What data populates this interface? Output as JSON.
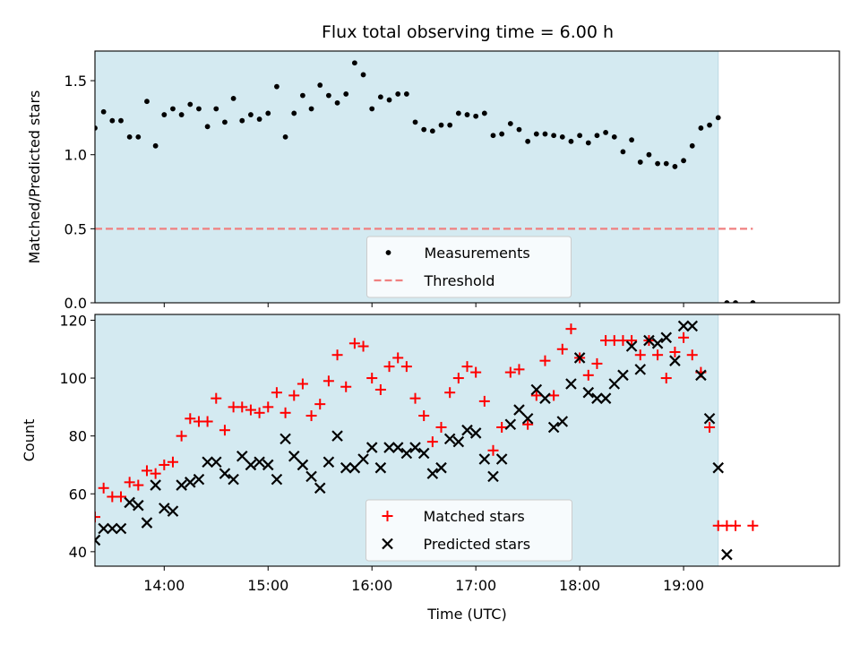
{
  "title": "Flux total observing time = 6.00 h",
  "chart_data": [
    {
      "type": "scatter",
      "ylabel": "Matched/Predicted stars",
      "xlabel": "",
      "x_unit": "UTC time (HH:MM)",
      "xlim": [
        "13:20",
        "20:30"
      ],
      "ylim": [
        0,
        1.7
      ],
      "yticks": [
        "0.0",
        "0.5",
        "1.0",
        "1.5"
      ],
      "grid": false,
      "shaded_span": [
        "13:20",
        "19:20"
      ],
      "shaded_color": "#d4eaf1",
      "legend_position": "lower center",
      "series": [
        {
          "name": "Measurements",
          "marker": "dot",
          "color": "#000000",
          "points": [
            [
              "13:20",
              1.18
            ],
            [
              "13:25",
              1.29
            ],
            [
              "13:30",
              1.23
            ],
            [
              "13:35",
              1.23
            ],
            [
              "13:40",
              1.12
            ],
            [
              "13:45",
              1.12
            ],
            [
              "13:50",
              1.36
            ],
            [
              "13:55",
              1.06
            ],
            [
              "14:00",
              1.27
            ],
            [
              "14:05",
              1.31
            ],
            [
              "14:10",
              1.27
            ],
            [
              "14:15",
              1.34
            ],
            [
              "14:20",
              1.31
            ],
            [
              "14:25",
              1.19
            ],
            [
              "14:30",
              1.31
            ],
            [
              "14:35",
              1.22
            ],
            [
              "14:40",
              1.38
            ],
            [
              "14:45",
              1.23
            ],
            [
              "14:50",
              1.27
            ],
            [
              "14:55",
              1.24
            ],
            [
              "15:00",
              1.28
            ],
            [
              "15:05",
              1.46
            ],
            [
              "15:10",
              1.12
            ],
            [
              "15:15",
              1.28
            ],
            [
              "15:20",
              1.4
            ],
            [
              "15:25",
              1.31
            ],
            [
              "15:30",
              1.47
            ],
            [
              "15:35",
              1.4
            ],
            [
              "15:40",
              1.35
            ],
            [
              "15:45",
              1.41
            ],
            [
              "15:50",
              1.62
            ],
            [
              "15:55",
              1.54
            ],
            [
              "16:00",
              1.31
            ],
            [
              "16:05",
              1.39
            ],
            [
              "16:10",
              1.37
            ],
            [
              "16:15",
              1.41
            ],
            [
              "16:20",
              1.41
            ],
            [
              "16:25",
              1.22
            ],
            [
              "16:30",
              1.17
            ],
            [
              "16:35",
              1.16
            ],
            [
              "16:40",
              1.2
            ],
            [
              "16:45",
              1.2
            ],
            [
              "16:50",
              1.28
            ],
            [
              "16:55",
              1.27
            ],
            [
              "17:00",
              1.26
            ],
            [
              "17:05",
              1.28
            ],
            [
              "17:10",
              1.13
            ],
            [
              "17:15",
              1.14
            ],
            [
              "17:20",
              1.21
            ],
            [
              "17:25",
              1.17
            ],
            [
              "17:30",
              1.09
            ],
            [
              "17:35",
              1.14
            ],
            [
              "17:40",
              1.14
            ],
            [
              "17:45",
              1.13
            ],
            [
              "17:50",
              1.12
            ],
            [
              "17:55",
              1.09
            ],
            [
              "18:00",
              1.13
            ],
            [
              "18:05",
              1.08
            ],
            [
              "18:10",
              1.13
            ],
            [
              "18:15",
              1.15
            ],
            [
              "18:20",
              1.12
            ],
            [
              "18:25",
              1.02
            ],
            [
              "18:30",
              1.1
            ],
            [
              "18:35",
              0.95
            ],
            [
              "18:40",
              1.0
            ],
            [
              "18:45",
              0.94
            ],
            [
              "18:50",
              0.94
            ],
            [
              "18:55",
              0.92
            ],
            [
              "19:00",
              0.96
            ],
            [
              "19:05",
              1.06
            ],
            [
              "19:10",
              1.18
            ],
            [
              "19:15",
              1.2
            ],
            [
              "19:20",
              1.25
            ],
            [
              "19:25",
              0.0
            ],
            [
              "19:30",
              0.0
            ],
            [
              "19:40",
              0.0
            ]
          ]
        },
        {
          "name": "Threshold",
          "marker": "dashed-line",
          "color": "#f08080",
          "points": [
            [
              "13:20",
              0.5
            ],
            [
              "19:40",
              0.5
            ]
          ]
        }
      ]
    },
    {
      "type": "scatter",
      "ylabel": "Count",
      "xlabel": "Time (UTC)",
      "xlim": [
        "13:20",
        "20:30"
      ],
      "ylim": [
        35,
        122
      ],
      "yticks": [
        "40",
        "60",
        "80",
        "100",
        "120"
      ],
      "xticks": [
        "14:00",
        "15:00",
        "16:00",
        "17:00",
        "18:00",
        "19:00"
      ],
      "grid": false,
      "shaded_span": [
        "13:20",
        "19:20"
      ],
      "shaded_color": "#d4eaf1",
      "legend_position": "lower center",
      "series": [
        {
          "name": "Matched stars",
          "marker": "plus",
          "color": "#ff0000",
          "points": [
            [
              "13:20",
              52
            ],
            [
              "13:25",
              62
            ],
            [
              "13:30",
              59
            ],
            [
              "13:35",
              59
            ],
            [
              "13:40",
              64
            ],
            [
              "13:45",
              63
            ],
            [
              "13:50",
              68
            ],
            [
              "13:55",
              67
            ],
            [
              "14:00",
              70
            ],
            [
              "14:05",
              71
            ],
            [
              "14:10",
              80
            ],
            [
              "14:15",
              86
            ],
            [
              "14:20",
              85
            ],
            [
              "14:25",
              85
            ],
            [
              "14:30",
              93
            ],
            [
              "14:35",
              82
            ],
            [
              "14:40",
              90
            ],
            [
              "14:45",
              90
            ],
            [
              "14:50",
              89
            ],
            [
              "14:55",
              88
            ],
            [
              "15:00",
              90
            ],
            [
              "15:05",
              95
            ],
            [
              "15:10",
              88
            ],
            [
              "15:15",
              94
            ],
            [
              "15:20",
              98
            ],
            [
              "15:25",
              87
            ],
            [
              "15:30",
              91
            ],
            [
              "15:35",
              99
            ],
            [
              "15:40",
              108
            ],
            [
              "15:45",
              97
            ],
            [
              "15:50",
              112
            ],
            [
              "15:55",
              111
            ],
            [
              "16:00",
              100
            ],
            [
              "16:05",
              96
            ],
            [
              "16:10",
              104
            ],
            [
              "16:15",
              107
            ],
            [
              "16:20",
              104
            ],
            [
              "16:25",
              93
            ],
            [
              "16:30",
              87
            ],
            [
              "16:35",
              78
            ],
            [
              "16:40",
              83
            ],
            [
              "16:45",
              95
            ],
            [
              "16:50",
              100
            ],
            [
              "16:55",
              104
            ],
            [
              "17:00",
              102
            ],
            [
              "17:05",
              92
            ],
            [
              "17:10",
              75
            ],
            [
              "17:15",
              83
            ],
            [
              "17:20",
              102
            ],
            [
              "17:25",
              103
            ],
            [
              "17:30",
              84
            ],
            [
              "17:35",
              94
            ],
            [
              "17:40",
              106
            ],
            [
              "17:45",
              94
            ],
            [
              "17:50",
              110
            ],
            [
              "17:55",
              117
            ],
            [
              "18:00",
              107
            ],
            [
              "18:05",
              101
            ],
            [
              "18:10",
              105
            ],
            [
              "18:15",
              113
            ],
            [
              "18:20",
              113
            ],
            [
              "18:25",
              113
            ],
            [
              "18:30",
              113
            ],
            [
              "18:35",
              108
            ],
            [
              "18:40",
              113
            ],
            [
              "18:45",
              108
            ],
            [
              "18:50",
              100
            ],
            [
              "18:55",
              109
            ],
            [
              "19:00",
              114
            ],
            [
              "19:05",
              108
            ],
            [
              "19:10",
              102
            ],
            [
              "19:15",
              83
            ],
            [
              "19:20",
              49
            ],
            [
              "19:25",
              49
            ],
            [
              "19:30",
              49
            ],
            [
              "19:40",
              49
            ]
          ]
        },
        {
          "name": "Predicted stars",
          "marker": "x",
          "color": "#000000",
          "points": [
            [
              "13:20",
              44
            ],
            [
              "13:25",
              48
            ],
            [
              "13:30",
              48
            ],
            [
              "13:35",
              48
            ],
            [
              "13:40",
              57
            ],
            [
              "13:45",
              56
            ],
            [
              "13:50",
              50
            ],
            [
              "13:55",
              63
            ],
            [
              "14:00",
              55
            ],
            [
              "14:05",
              54
            ],
            [
              "14:10",
              63
            ],
            [
              "14:15",
              64
            ],
            [
              "14:20",
              65
            ],
            [
              "14:25",
              71
            ],
            [
              "14:30",
              71
            ],
            [
              "14:35",
              67
            ],
            [
              "14:40",
              65
            ],
            [
              "14:45",
              73
            ],
            [
              "14:50",
              70
            ],
            [
              "14:55",
              71
            ],
            [
              "15:00",
              70
            ],
            [
              "15:05",
              65
            ],
            [
              "15:10",
              79
            ],
            [
              "15:15",
              73
            ],
            [
              "15:20",
              70
            ],
            [
              "15:25",
              66
            ],
            [
              "15:30",
              62
            ],
            [
              "15:35",
              71
            ],
            [
              "15:40",
              80
            ],
            [
              "15:45",
              69
            ],
            [
              "15:50",
              69
            ],
            [
              "15:55",
              72
            ],
            [
              "16:00",
              76
            ],
            [
              "16:05",
              69
            ],
            [
              "16:10",
              76
            ],
            [
              "16:15",
              76
            ],
            [
              "16:20",
              74
            ],
            [
              "16:25",
              76
            ],
            [
              "16:30",
              74
            ],
            [
              "16:35",
              67
            ],
            [
              "16:40",
              69
            ],
            [
              "16:45",
              79
            ],
            [
              "16:50",
              78
            ],
            [
              "16:55",
              82
            ],
            [
              "17:00",
              81
            ],
            [
              "17:05",
              72
            ],
            [
              "17:10",
              66
            ],
            [
              "17:15",
              72
            ],
            [
              "17:20",
              84
            ],
            [
              "17:25",
              89
            ],
            [
              "17:30",
              86
            ],
            [
              "17:35",
              96
            ],
            [
              "17:40",
              93
            ],
            [
              "17:45",
              83
            ],
            [
              "17:50",
              85
            ],
            [
              "17:55",
              98
            ],
            [
              "18:00",
              107
            ],
            [
              "18:05",
              95
            ],
            [
              "18:10",
              93
            ],
            [
              "18:15",
              93
            ],
            [
              "18:20",
              98
            ],
            [
              "18:25",
              101
            ],
            [
              "18:30",
              111
            ],
            [
              "18:35",
              103
            ],
            [
              "18:40",
              113
            ],
            [
              "18:45",
              112
            ],
            [
              "18:50",
              114
            ],
            [
              "18:55",
              106
            ],
            [
              "19:00",
              118
            ],
            [
              "19:05",
              118
            ],
            [
              "19:10",
              101
            ],
            [
              "19:15",
              86
            ],
            [
              "19:20",
              69
            ],
            [
              "19:25",
              39
            ]
          ]
        }
      ]
    }
  ]
}
